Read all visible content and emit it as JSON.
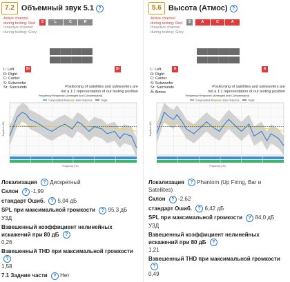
{
  "left": {
    "score": "7.2",
    "title": "Объемный звук 5.1",
    "diagram": {
      "active_line1": "Active channel",
      "active_line2": "during testing: Red",
      "inactive_line1": "Innactive channel",
      "inactive_line2": "during testing: Grey",
      "top_marker": "S",
      "speaker_bar": [
        "L",
        "C",
        "R"
      ],
      "side_marker_left": "Sr",
      "side_marker_right": "Sr",
      "legend": [
        "L: Left",
        "R: Right",
        "C: Center",
        "S: Subwoofer",
        "Sr: Surrounds"
      ],
      "note_line1": "Positioning of satellites and subwoofers are",
      "note_line2": "not a 1:1 representation of our testing position"
    },
    "chart": {
      "title": "Frequency Response (Averaged and Compensated)",
      "legend": [
        "Compensated Response",
        "Linear Response",
        "Target"
      ],
      "ylabel": "Amplitude (dB)",
      "xlabel": "Frequency (Hz)"
    },
    "specs": {
      "localization_label": "Локализация",
      "localization_value": "Дискретный",
      "slope_label": "Склон",
      "slope_value": "-1,99",
      "stderr_label": "стандарт Ошиб.",
      "stderr_value": "5,04 дБ",
      "spl_label": "SPL при максимальной громкости",
      "spl_value": "95,3 дБ",
      "spl_unit": "УЗД",
      "thd80_label": "Взвешенный коэффициент нелинейных искажений при 80 дБ",
      "thd80_value": "0,26",
      "thdmax_label": "Взвешенный THD при максимальной громкости",
      "thdmax_value": "1,58",
      "rear_label": "7.1 Задние части",
      "rear_value": "Нет"
    }
  },
  "right": {
    "score": "5.6",
    "title": "Высота (Атмос)",
    "diagram": {
      "active_line1": "Active channel",
      "active_line2": "during testing: Red",
      "inactive_line1": "Innactive channel",
      "inactive_line2": "during testing: Grey",
      "top_marker": "S",
      "speaker_bar": [
        "A",
        "C",
        "A"
      ],
      "side_marker_left": "A",
      "side_marker_right": "A",
      "legend": [
        "L: Left",
        "R: Right",
        "C: Center",
        "S: Subwoofer",
        "Sr: Surrounds",
        "A: Atmos"
      ],
      "note_line1": "Positioning of satellites and subwoofers are",
      "note_line2": "not a 1:1 representation of our testing position"
    },
    "chart": {
      "title": "Frequency Response (Averaged and Compensated)",
      "legend": [
        "Compensated Response",
        "Linear Response",
        "Target"
      ],
      "ylabel": "Amplitude (dB)",
      "xlabel": "Frequency (Hz)"
    },
    "specs": {
      "localization_label": "Локализация",
      "localization_value": "Phantom (Up Firing, Bar и Satellites)",
      "slope_label": "Склон",
      "slope_value": "-2,62",
      "stderr_label": "стандарт Ошиб.",
      "stderr_value": "6,42 дБ",
      "spl_label": "SPL при максимальной громкости",
      "spl_value": "84,0 дБ",
      "spl_unit": "УЗД",
      "thd80_label": "Взвешенный коэффициент нелинейных искажений при 80 дБ",
      "thd80_value": "1,21",
      "thdmax_label": "Взвешенный THD при максимальной громкости",
      "thdmax_value": "0,49"
    }
  },
  "colors": {
    "accent_score": "#c87800",
    "active_red": "#e03b3b",
    "inactive_grey": "#8a8a8a",
    "link_blue": "#2a79c9",
    "response_blue": "#2f7fd1",
    "linear_yellow": "#e8d44a",
    "band_green": "#3fb56b",
    "band_blue": "#3b8fd8"
  },
  "chart_data": [
    {
      "type": "line",
      "title": "Frequency Response (Averaged and Compensated)",
      "xlabel": "Frequency (Hz)",
      "ylabel": "Amplitude (dB)",
      "xscale": "log",
      "series": [
        {
          "name": "Compensated Response",
          "x": [
            20,
            30,
            40,
            50,
            60,
            80,
            100,
            150,
            200,
            300,
            400,
            600,
            800,
            1000,
            1500,
            2000,
            3000,
            4000,
            6000,
            8000,
            10000,
            15000,
            20000
          ],
          "y": [
            -4,
            4,
            6,
            5,
            3,
            2,
            1,
            -1,
            -2,
            0,
            1,
            -1,
            2,
            1,
            -2,
            0,
            -1,
            -3,
            -2,
            -5,
            -3,
            -4,
            -9
          ]
        },
        {
          "name": "Linear Response",
          "x": [
            20,
            100,
            1000,
            10000,
            20000
          ],
          "y": [
            1,
            0,
            0,
            -1,
            -2
          ]
        },
        {
          "name": "Target",
          "x": [
            20,
            20000
          ],
          "y": [
            0,
            0
          ]
        }
      ]
    },
    {
      "type": "line",
      "title": "Frequency Response (Averaged and Compensated)",
      "xlabel": "Frequency (Hz)",
      "ylabel": "Amplitude (dB)",
      "xscale": "log",
      "series": [
        {
          "name": "Compensated Response",
          "x": [
            20,
            30,
            40,
            50,
            60,
            80,
            100,
            150,
            200,
            300,
            400,
            600,
            800,
            1000,
            1500,
            2000,
            3000,
            4000,
            6000,
            8000,
            10000,
            15000,
            20000
          ],
          "y": [
            -3,
            6,
            4,
            3,
            5,
            2,
            -1,
            -3,
            -1,
            2,
            0,
            -2,
            1,
            3,
            0,
            -2,
            1,
            -4,
            -2,
            -6,
            -3,
            -5,
            -8
          ]
        },
        {
          "name": "Linear Response",
          "x": [
            20,
            100,
            1000,
            10000,
            20000
          ],
          "y": [
            2,
            1,
            0,
            -1,
            -2
          ]
        },
        {
          "name": "Target",
          "x": [
            20,
            20000
          ],
          "y": [
            0,
            0
          ]
        }
      ]
    }
  ]
}
